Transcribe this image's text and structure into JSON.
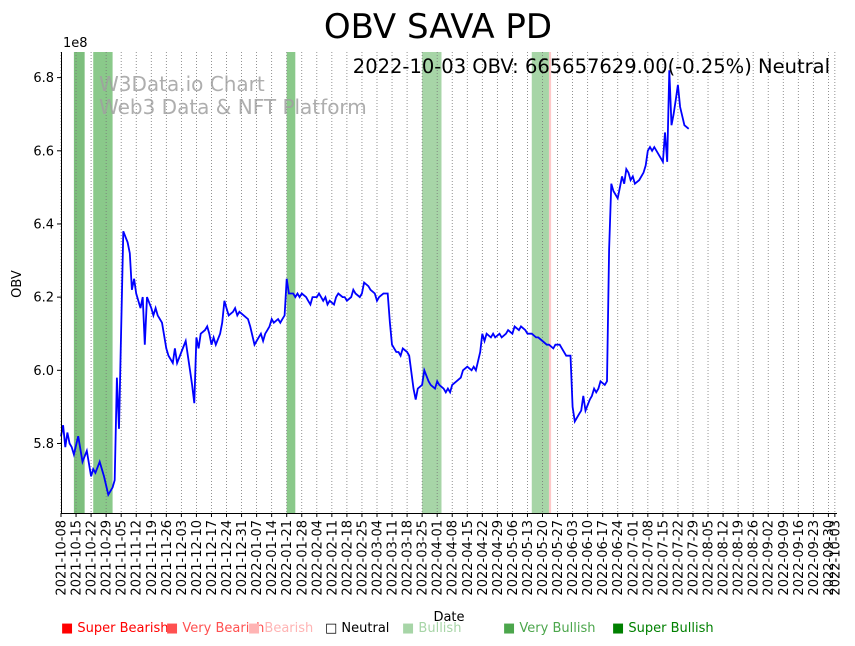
{
  "chart_data": {
    "type": "line",
    "title": "OBV SAVA PD",
    "annotation": "2022-10-03 OBV: 665657629.00(-0.25%) Neutral",
    "watermark": [
      "W3Data.io Chart",
      "Web3 Data & NFT Platform"
    ],
    "xlabel": "Date",
    "ylabel": "OBV",
    "y_multiplier": "1e8",
    "ylim": [
      5.61,
      6.87
    ],
    "xlim": [
      "2021-10-08",
      "2022-10-04"
    ],
    "y_ticks": [
      "5.8",
      "6.0",
      "6.2",
      "6.4",
      "6.6",
      "6.8"
    ],
    "x_ticks": [
      "2021-10-08",
      "2021-10-15",
      "2021-10-22",
      "2021-10-29",
      "2021-11-05",
      "2021-11-12",
      "2021-11-19",
      "2021-11-26",
      "2021-12-03",
      "2021-12-10",
      "2021-12-17",
      "2021-12-24",
      "2021-12-31",
      "2022-01-07",
      "2022-01-14",
      "2022-01-21",
      "2022-01-28",
      "2022-02-04",
      "2022-02-11",
      "2022-02-18",
      "2022-02-25",
      "2022-03-04",
      "2022-03-11",
      "2022-03-18",
      "2022-03-25",
      "2022-04-01",
      "2022-04-08",
      "2022-04-15",
      "2022-04-22",
      "2022-04-29",
      "2022-05-06",
      "2022-05-13",
      "2022-05-20",
      "2022-05-27",
      "2022-06-03",
      "2022-06-10",
      "2022-06-17",
      "2022-06-24",
      "2022-07-01",
      "2022-07-08",
      "2022-07-15",
      "2022-07-22",
      "2022-07-29",
      "2022-08-05",
      "2022-08-12",
      "2022-08-19",
      "2022-08-26",
      "2022-09-02",
      "2022-09-09",
      "2022-09-16",
      "2022-09-23",
      "2022-09-30",
      "2022-10-03"
    ],
    "grid": "vertical dotted",
    "series": [
      {
        "color": "#0000ff",
        "points": [
          [
            "2021-10-08",
            5.82
          ],
          [
            "2021-10-09",
            5.85
          ],
          [
            "2021-10-10",
            5.79
          ],
          [
            "2021-10-11",
            5.83
          ],
          [
            "2021-10-12",
            5.8
          ],
          [
            "2021-10-13",
            5.79
          ],
          [
            "2021-10-14",
            5.77
          ],
          [
            "2021-10-16",
            5.82
          ],
          [
            "2021-10-18",
            5.75
          ],
          [
            "2021-10-20",
            5.78
          ],
          [
            "2021-10-22",
            5.71
          ],
          [
            "2021-10-23",
            5.73
          ],
          [
            "2021-10-24",
            5.72
          ],
          [
            "2021-10-26",
            5.75
          ],
          [
            "2021-10-28",
            5.71
          ],
          [
            "2021-10-30",
            5.66
          ],
          [
            "2021-11-01",
            5.68
          ],
          [
            "2021-11-02",
            5.7
          ],
          [
            "2021-11-03",
            5.98
          ],
          [
            "2021-11-04",
            5.84
          ],
          [
            "2021-11-06",
            6.38
          ],
          [
            "2021-11-08",
            6.35
          ],
          [
            "2021-11-09",
            6.32
          ],
          [
            "2021-11-10",
            6.22
          ],
          [
            "2021-11-11",
            6.25
          ],
          [
            "2021-11-12",
            6.21
          ],
          [
            "2021-11-14",
            6.17
          ],
          [
            "2021-11-15",
            6.2
          ],
          [
            "2021-11-16",
            6.07
          ],
          [
            "2021-11-17",
            6.2
          ],
          [
            "2021-11-19",
            6.17
          ],
          [
            "2021-11-20",
            6.15
          ],
          [
            "2021-11-21",
            6.17
          ],
          [
            "2021-11-22",
            6.15
          ],
          [
            "2021-11-24",
            6.13
          ],
          [
            "2021-11-26",
            6.06
          ],
          [
            "2021-11-27",
            6.04
          ],
          [
            "2021-11-29",
            6.02
          ],
          [
            "2021-11-30",
            6.06
          ],
          [
            "2021-12-01",
            6.02
          ],
          [
            "2021-12-03",
            6.05
          ],
          [
            "2021-12-05",
            6.08
          ],
          [
            "2021-12-07",
            6.0
          ],
          [
            "2021-12-08",
            5.96
          ],
          [
            "2021-12-09",
            5.91
          ],
          [
            "2021-12-10",
            6.09
          ],
          [
            "2021-12-11",
            6.06
          ],
          [
            "2021-12-12",
            6.1
          ],
          [
            "2021-12-14",
            6.11
          ],
          [
            "2021-12-15",
            6.12
          ],
          [
            "2021-12-16",
            6.1
          ],
          [
            "2021-12-17",
            6.07
          ],
          [
            "2021-12-18",
            6.09
          ],
          [
            "2021-12-19",
            6.07
          ],
          [
            "2021-12-21",
            6.1
          ],
          [
            "2021-12-22",
            6.13
          ],
          [
            "2021-12-23",
            6.19
          ],
          [
            "2021-12-24",
            6.17
          ],
          [
            "2021-12-25",
            6.15
          ],
          [
            "2021-12-27",
            6.16
          ],
          [
            "2021-12-28",
            6.17
          ],
          [
            "2021-12-29",
            6.15
          ],
          [
            "2021-12-30",
            6.16
          ],
          [
            "2022-01-01",
            6.15
          ],
          [
            "2022-01-03",
            6.14
          ],
          [
            "2022-01-04",
            6.12
          ],
          [
            "2022-01-06",
            6.07
          ],
          [
            "2022-01-07",
            6.08
          ],
          [
            "2022-01-09",
            6.1
          ],
          [
            "2022-01-10",
            6.08
          ],
          [
            "2022-01-11",
            6.1
          ],
          [
            "2022-01-12",
            6.11
          ],
          [
            "2022-01-13",
            6.12
          ],
          [
            "2022-01-14",
            6.14
          ],
          [
            "2022-01-15",
            6.13
          ],
          [
            "2022-01-17",
            6.14
          ],
          [
            "2022-01-18",
            6.13
          ],
          [
            "2022-01-19",
            6.14
          ],
          [
            "2022-01-20",
            6.15
          ],
          [
            "2022-01-21",
            6.25
          ],
          [
            "2022-01-22",
            6.21
          ],
          [
            "2022-01-24",
            6.21
          ],
          [
            "2022-01-25",
            6.2
          ],
          [
            "2022-01-26",
            6.21
          ],
          [
            "2022-01-27",
            6.2
          ],
          [
            "2022-01-28",
            6.21
          ],
          [
            "2022-01-30",
            6.2
          ],
          [
            "2022-01-31",
            6.19
          ],
          [
            "2022-02-01",
            6.18
          ],
          [
            "2022-02-02",
            6.2
          ],
          [
            "2022-02-04",
            6.2
          ],
          [
            "2022-02-05",
            6.21
          ],
          [
            "2022-02-06",
            6.2
          ],
          [
            "2022-02-07",
            6.19
          ],
          [
            "2022-02-08",
            6.2
          ],
          [
            "2022-02-09",
            6.18
          ],
          [
            "2022-02-10",
            6.19
          ],
          [
            "2022-02-12",
            6.18
          ],
          [
            "2022-02-13",
            6.2
          ],
          [
            "2022-02-14",
            6.21
          ],
          [
            "2022-02-16",
            6.2
          ],
          [
            "2022-02-17",
            6.2
          ],
          [
            "2022-02-18",
            6.19
          ],
          [
            "2022-02-20",
            6.2
          ],
          [
            "2022-02-21",
            6.22
          ],
          [
            "2022-02-22",
            6.21
          ],
          [
            "2022-02-24",
            6.2
          ],
          [
            "2022-02-25",
            6.21
          ],
          [
            "2022-02-26",
            6.24
          ],
          [
            "2022-02-28",
            6.23
          ],
          [
            "2022-03-01",
            6.22
          ],
          [
            "2022-03-03",
            6.21
          ],
          [
            "2022-03-04",
            6.19
          ],
          [
            "2022-03-05",
            6.2
          ],
          [
            "2022-03-07",
            6.21
          ],
          [
            "2022-03-09",
            6.21
          ],
          [
            "2022-03-10",
            6.13
          ],
          [
            "2022-03-11",
            6.07
          ],
          [
            "2022-03-13",
            6.05
          ],
          [
            "2022-03-14",
            6.05
          ],
          [
            "2022-03-15",
            6.04
          ],
          [
            "2022-03-16",
            6.06
          ],
          [
            "2022-03-18",
            6.05
          ],
          [
            "2022-03-19",
            6.04
          ],
          [
            "2022-03-21",
            5.95
          ],
          [
            "2022-03-22",
            5.92
          ],
          [
            "2022-03-23",
            5.95
          ],
          [
            "2022-03-25",
            5.96
          ],
          [
            "2022-03-26",
            6.0
          ],
          [
            "2022-03-28",
            5.97
          ],
          [
            "2022-03-29",
            5.96
          ],
          [
            "2022-03-31",
            5.95
          ],
          [
            "2022-04-01",
            5.97
          ],
          [
            "2022-04-02",
            5.96
          ],
          [
            "2022-04-04",
            5.95
          ],
          [
            "2022-04-05",
            5.94
          ],
          [
            "2022-04-06",
            5.95
          ],
          [
            "2022-04-07",
            5.94
          ],
          [
            "2022-04-08",
            5.96
          ],
          [
            "2022-04-10",
            5.97
          ],
          [
            "2022-04-12",
            5.98
          ],
          [
            "2022-04-13",
            6.0
          ],
          [
            "2022-04-15",
            6.01
          ],
          [
            "2022-04-17",
            6.0
          ],
          [
            "2022-04-18",
            6.01
          ],
          [
            "2022-04-19",
            6.0
          ],
          [
            "2022-04-21",
            6.05
          ],
          [
            "2022-04-22",
            6.1
          ],
          [
            "2022-04-23",
            6.08
          ],
          [
            "2022-04-24",
            6.1
          ],
          [
            "2022-04-26",
            6.09
          ],
          [
            "2022-04-27",
            6.1
          ],
          [
            "2022-04-28",
            6.09
          ],
          [
            "2022-04-30",
            6.1
          ],
          [
            "2022-05-01",
            6.09
          ],
          [
            "2022-05-03",
            6.1
          ],
          [
            "2022-05-04",
            6.11
          ],
          [
            "2022-05-06",
            6.1
          ],
          [
            "2022-05-07",
            6.12
          ],
          [
            "2022-05-09",
            6.11
          ],
          [
            "2022-05-10",
            6.12
          ],
          [
            "2022-05-12",
            6.11
          ],
          [
            "2022-05-13",
            6.1
          ],
          [
            "2022-05-15",
            6.1
          ],
          [
            "2022-05-17",
            6.09
          ],
          [
            "2022-05-18",
            6.09
          ],
          [
            "2022-05-20",
            6.08
          ],
          [
            "2022-05-22",
            6.07
          ],
          [
            "2022-05-23",
            6.07
          ],
          [
            "2022-05-25",
            6.06
          ],
          [
            "2022-05-26",
            6.07
          ],
          [
            "2022-05-28",
            6.07
          ],
          [
            "2022-05-29",
            6.06
          ],
          [
            "2022-05-31",
            6.04
          ],
          [
            "2022-06-02",
            6.04
          ],
          [
            "2022-06-03",
            5.9
          ],
          [
            "2022-06-04",
            5.86
          ],
          [
            "2022-06-06",
            5.88
          ],
          [
            "2022-06-07",
            5.89
          ],
          [
            "2022-06-08",
            5.93
          ],
          [
            "2022-06-09",
            5.89
          ],
          [
            "2022-06-11",
            5.92
          ],
          [
            "2022-06-12",
            5.93
          ],
          [
            "2022-06-13",
            5.95
          ],
          [
            "2022-06-14",
            5.94
          ],
          [
            "2022-06-15",
            5.95
          ],
          [
            "2022-06-16",
            5.97
          ],
          [
            "2022-06-18",
            5.96
          ],
          [
            "2022-06-19",
            5.97
          ],
          [
            "2022-06-20",
            6.33
          ],
          [
            "2022-06-21",
            6.51
          ],
          [
            "2022-06-22",
            6.49
          ],
          [
            "2022-06-24",
            6.47
          ],
          [
            "2022-06-25",
            6.5
          ],
          [
            "2022-06-26",
            6.53
          ],
          [
            "2022-06-27",
            6.51
          ],
          [
            "2022-06-28",
            6.55
          ],
          [
            "2022-06-29",
            6.54
          ],
          [
            "2022-06-30",
            6.52
          ],
          [
            "2022-07-01",
            6.53
          ],
          [
            "2022-07-02",
            6.51
          ],
          [
            "2022-07-04",
            6.52
          ],
          [
            "2022-07-06",
            6.54
          ],
          [
            "2022-07-07",
            6.56
          ],
          [
            "2022-07-08",
            6.6
          ],
          [
            "2022-07-09",
            6.61
          ],
          [
            "2022-07-10",
            6.6
          ],
          [
            "2022-07-11",
            6.61
          ],
          [
            "2022-07-13",
            6.59
          ],
          [
            "2022-07-15",
            6.57
          ],
          [
            "2022-07-16",
            6.65
          ],
          [
            "2022-07-17",
            6.57
          ],
          [
            "2022-07-18",
            6.82
          ],
          [
            "2022-07-19",
            6.67
          ],
          [
            "2022-07-20",
            6.7
          ],
          [
            "2022-07-21",
            6.74
          ],
          [
            "2022-07-22",
            6.78
          ],
          [
            "2022-07-23",
            6.72
          ],
          [
            "2022-07-25",
            6.67
          ],
          [
            "2022-07-27",
            6.66
          ]
        ]
      }
    ],
    "shaded_bands": [
      {
        "start": "2021-10-14",
        "end": "2021-10-19",
        "signal": "Very Bullish",
        "color": "#7dbf7d"
      },
      {
        "start": "2021-10-23",
        "end": "2021-11-01",
        "signal": "Very Bullish",
        "color": "#8ac98a"
      },
      {
        "start": "2022-01-21",
        "end": "2022-01-25",
        "signal": "Very Bullish",
        "color": "#8ac98a"
      },
      {
        "start": "2022-03-25",
        "end": "2022-04-03",
        "signal": "Bullish",
        "color": "#a7d5a7"
      },
      {
        "start": "2022-05-15",
        "end": "2022-05-23",
        "signal": "Bullish",
        "color": "#a7d5a7"
      },
      {
        "start": "2022-05-23",
        "end": "2022-05-24",
        "signal": "Bearish",
        "color": "#ffc8c8"
      }
    ],
    "legend": [
      {
        "label": "Super Bearish",
        "color": "#ff0000"
      },
      {
        "label": "Very Bearish",
        "color": "#ff5050"
      },
      {
        "label": "Bearish",
        "color": "#ffb4b4"
      },
      {
        "label": "Neutral",
        "color": "#000000"
      },
      {
        "label": "Bullish",
        "color": "#a7d5a7"
      },
      {
        "label": "Very Bullish",
        "color": "#4ca64c"
      },
      {
        "label": "Super Bullish",
        "color": "#008000"
      }
    ],
    "legend_placement": "bottom"
  }
}
